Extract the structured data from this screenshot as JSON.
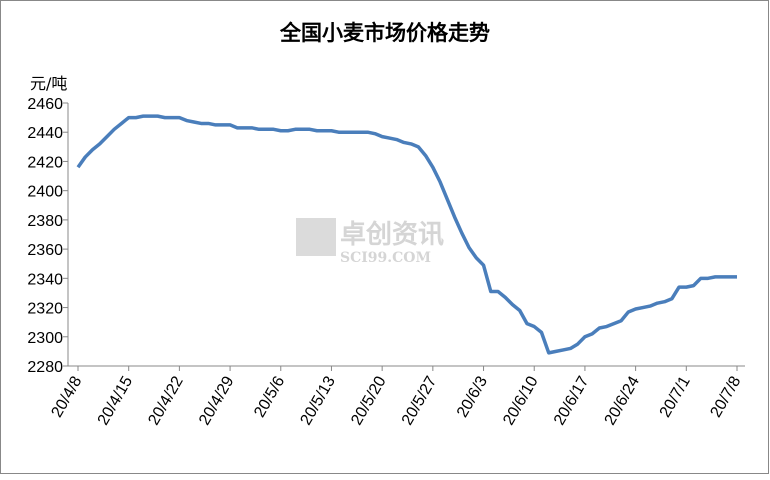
{
  "chart_data": {
    "type": "line",
    "title": "全国小麦市场价格走势",
    "y_label": "元/吨",
    "watermark": [
      "卓创资讯",
      "SCI99.COM"
    ],
    "categories": [
      "20/4/8",
      null,
      null,
      null,
      null,
      null,
      null,
      "20/4/15",
      null,
      null,
      null,
      null,
      null,
      null,
      "20/4/22",
      null,
      null,
      null,
      null,
      null,
      null,
      "20/4/29",
      null,
      null,
      null,
      null,
      null,
      null,
      "20/5/6",
      null,
      null,
      null,
      null,
      null,
      null,
      "20/5/13",
      null,
      null,
      null,
      null,
      null,
      null,
      "20/5/20",
      null,
      null,
      null,
      null,
      null,
      null,
      "20/5/27",
      null,
      null,
      null,
      null,
      null,
      null,
      "20/6/3",
      null,
      null,
      null,
      null,
      null,
      null,
      "20/6/10",
      null,
      null,
      null,
      null,
      null,
      null,
      "20/6/17",
      null,
      null,
      null,
      null,
      null,
      null,
      "20/6/24",
      null,
      null,
      null,
      null,
      null,
      null,
      "20/7/1",
      null,
      null,
      null,
      null,
      null,
      null,
      "20/7/8"
    ],
    "values": [
      2416,
      2423,
      2428,
      2432,
      2437,
      2442,
      2446,
      2450,
      2450,
      2451,
      2451,
      2451,
      2450,
      2450,
      2450,
      2448,
      2447,
      2446,
      2446,
      2445,
      2445,
      2445,
      2443,
      2443,
      2443,
      2442,
      2442,
      2442,
      2441,
      2441,
      2442,
      2442,
      2442,
      2441,
      2441,
      2441,
      2440,
      2440,
      2440,
      2440,
      2440,
      2439,
      2437,
      2436,
      2435,
      2433,
      2432,
      2430,
      2424,
      2416,
      2406,
      2394,
      2382,
      2371,
      2361,
      2354,
      2349,
      2331,
      2331,
      2327,
      2322,
      2318,
      2309,
      2307,
      2303,
      2289,
      2290,
      2291,
      2292,
      2295,
      2300,
      2302,
      2306,
      2307,
      2309,
      2311,
      2317,
      2319,
      2320,
      2321,
      2323,
      2324,
      2326,
      2334,
      2334,
      2335,
      2340,
      2340,
      2341,
      2341,
      2341,
      2341
    ],
    "color": "#4a7ebb",
    "ylim": [
      2280,
      2460
    ],
    "yticks": [
      2280,
      2300,
      2320,
      2340,
      2360,
      2380,
      2400,
      2420,
      2440,
      2460
    ],
    "grid": false
  }
}
